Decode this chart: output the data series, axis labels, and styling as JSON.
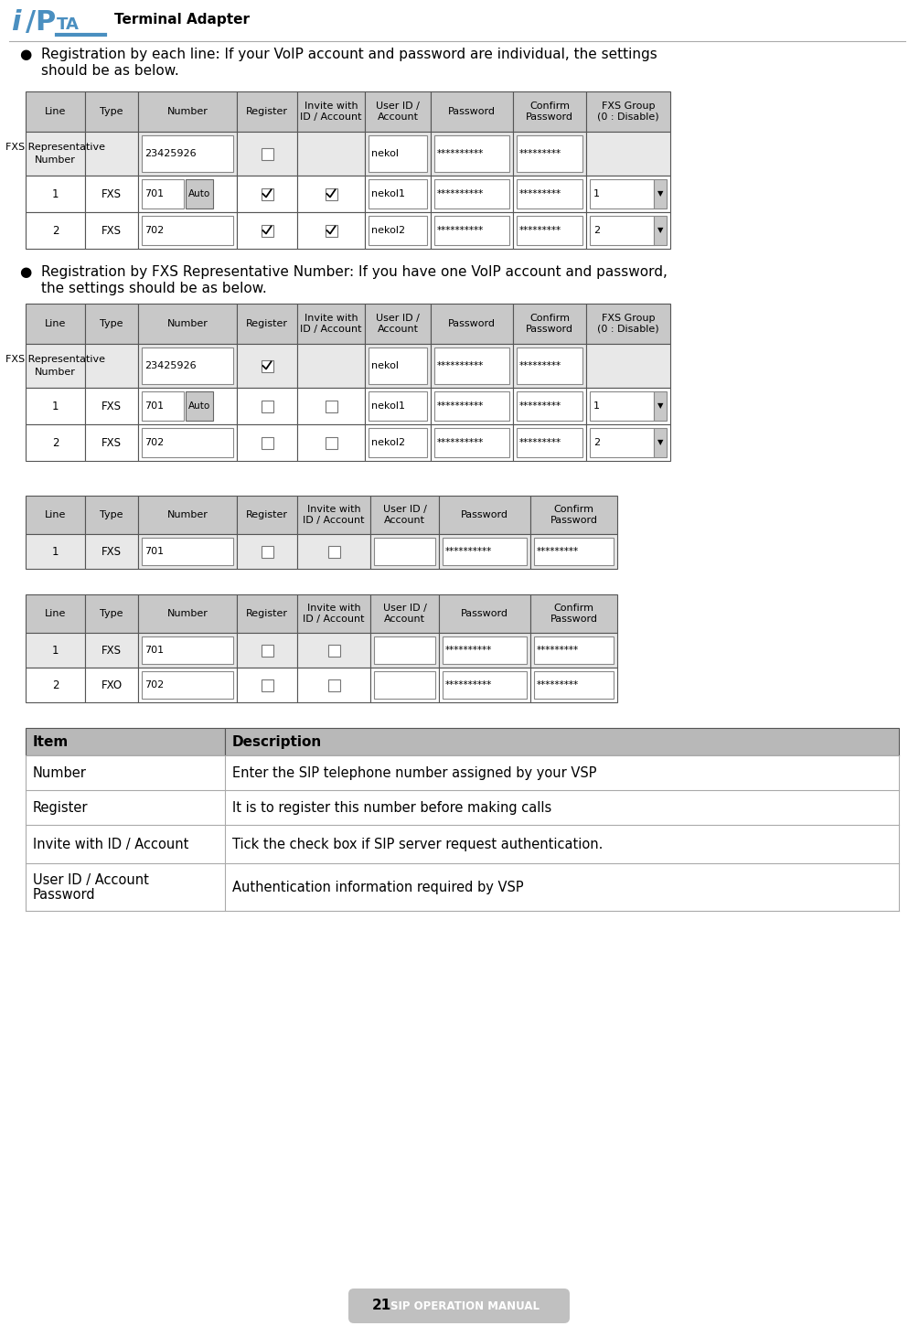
{
  "bg_color": "#ffffff",
  "header_text": "Terminal Adapter",
  "page_number": "21",
  "footer_text": "SIP OPERATION MANUAL",
  "bullet1_line1": "Registration by each line: If your VoIP account and password are individual, the settings",
  "bullet1_line2": "should be as below.",
  "bullet2_line1": "Registration by FXS Representative Number: If you have one VoIP account and password,",
  "bullet2_line2": "the settings should be as below.",
  "table_cols_9": [
    "Line",
    "Type",
    "Number",
    "Register",
    "Invite with\nID / Account",
    "User ID /\nAccount",
    "Password",
    "Confirm\nPassword",
    "FXS Group\n(0 : Disable)"
  ],
  "table_cols_8": [
    "Line",
    "Type",
    "Number",
    "Register",
    "Invite with\nID / Account",
    "User ID /\nAccount",
    "Password",
    "Confirm\nPassword"
  ],
  "desc_table_header": [
    "Item",
    "Description"
  ],
  "desc_rows": [
    [
      "Number",
      "Enter the SIP telephone number assigned by your VSP"
    ],
    [
      "Register",
      "It is to register this number before making calls"
    ],
    [
      "Invite with ID / Account",
      "Tick the check box if SIP server request authentication."
    ],
    [
      "User ID / Account\nPassword",
      "Authentication information required by VSP"
    ]
  ],
  "sip_blue": "#4a8fc0",
  "hdr_gray": "#c8c8c8",
  "row0_gray": "#e8e8e8"
}
